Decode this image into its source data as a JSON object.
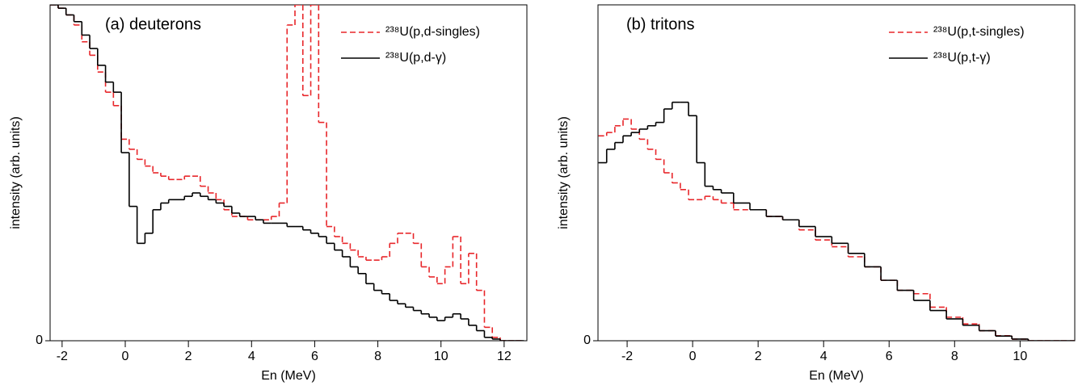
{
  "chart_data": [
    {
      "type": "step",
      "title": "(a) deuterons",
      "x_label": "En (MeV)",
      "y_label": "intensity (arb. units)",
      "xlim": [
        -2.38,
        12.72
      ],
      "ylim": [
        0,
        100
      ],
      "xticks": [
        -2,
        0,
        2,
        4,
        6,
        8,
        10,
        12
      ],
      "yticks": [
        0
      ],
      "legend": "upper right",
      "x": [
        -2.25,
        -2,
        -1.75,
        -1.5,
        -1.25,
        -1,
        -0.75,
        -0.5,
        -0.25,
        0,
        0.25,
        0.5,
        0.75,
        1,
        1.25,
        1.5,
        1.75,
        2,
        2.25,
        2.5,
        2.75,
        3,
        3.25,
        3.5,
        3.75,
        4,
        4.25,
        4.5,
        4.75,
        5,
        5.25,
        5.5,
        5.75,
        6,
        6.25,
        6.5,
        6.75,
        7,
        7.25,
        7.5,
        7.75,
        8,
        8.25,
        8.5,
        8.75,
        9,
        9.25,
        9.5,
        9.75,
        10,
        10.25,
        10.5,
        10.75,
        11,
        11.25,
        11.5,
        11.75,
        12,
        12.25,
        12.5
      ],
      "series": [
        {
          "name": "²³⁸U(p,d-singles)",
          "color": "#e8262a",
          "style": "dashed",
          "values": [
            100,
            99,
            97,
            94,
            89,
            85,
            80,
            74,
            70,
            60,
            57,
            54,
            52,
            50,
            49,
            48,
            48,
            49,
            49,
            46,
            44,
            42,
            39,
            37,
            37,
            36,
            36,
            36,
            37,
            41,
            94,
            100,
            73,
            100,
            65,
            34,
            31,
            29,
            27,
            25,
            24,
            24,
            25,
            29,
            32,
            32,
            29,
            22,
            19,
            17,
            22,
            31,
            17,
            26,
            15,
            4,
            1,
            0,
            0,
            0
          ]
        },
        {
          "name": "²³⁸U(p,d-γ)",
          "color": "#000000",
          "style": "solid",
          "values": [
            100,
            99,
            97,
            95,
            91,
            87,
            82,
            77,
            74,
            56,
            40,
            29,
            32,
            39,
            41,
            42,
            42,
            43,
            44,
            43,
            42,
            41,
            40,
            38,
            37,
            37,
            36,
            35,
            35,
            35,
            34,
            34,
            33,
            32,
            31,
            29,
            27,
            25,
            22,
            20,
            17,
            15,
            14,
            12,
            11,
            10,
            9,
            8,
            7,
            6,
            7,
            8,
            6.5,
            4.6,
            3,
            1,
            0.5,
            0,
            0,
            0
          ]
        }
      ]
    },
    {
      "type": "step",
      "title": "(b) tritons",
      "x_label": "En (MeV)",
      "y_label": "intensity (arb. units)",
      "xlim": [
        -2.89,
        11.67
      ],
      "ylim": [
        0,
        100
      ],
      "xticks": [
        -2,
        0,
        2,
        4,
        6,
        8,
        10
      ],
      "yticks": [
        0
      ],
      "legend": "upper right",
      "x": [
        -2.75,
        -2.5,
        -2.25,
        -2,
        -1.75,
        -1.5,
        -1.25,
        -1,
        -0.75,
        -0.5,
        -0.25,
        0,
        0.25,
        0.5,
        0.75,
        1,
        1.5,
        2,
        2.5,
        3,
        3.5,
        4,
        4.5,
        5,
        5.5,
        6,
        6.5,
        7,
        7.5,
        8,
        8.5,
        9,
        9.5,
        10,
        10.5,
        11,
        11.5
      ],
      "series": [
        {
          "name": "²³⁸U(p,t-singles)",
          "color": "#e8262a",
          "style": "dashed",
          "values": [
            61,
            62,
            64,
            66,
            63,
            60,
            57,
            54,
            50,
            47,
            45,
            42,
            42,
            43,
            42,
            41,
            39,
            39,
            37,
            36,
            33,
            30,
            28,
            25,
            22,
            18,
            15,
            14,
            10,
            7,
            5,
            3,
            1.5,
            0.5,
            0,
            0,
            0
          ]
        },
        {
          "name": "²³⁸U(p,t-γ)",
          "color": "#000000",
          "style": "solid",
          "values": [
            53,
            57,
            59,
            61,
            62,
            63,
            64,
            65,
            69,
            71,
            71,
            67,
            53,
            46,
            45,
            44,
            41,
            39,
            37,
            36,
            34,
            31,
            29,
            26,
            22,
            18,
            15,
            12,
            9,
            6.5,
            4.6,
            3,
            1.4,
            0.5,
            0,
            0,
            0
          ]
        }
      ]
    }
  ]
}
